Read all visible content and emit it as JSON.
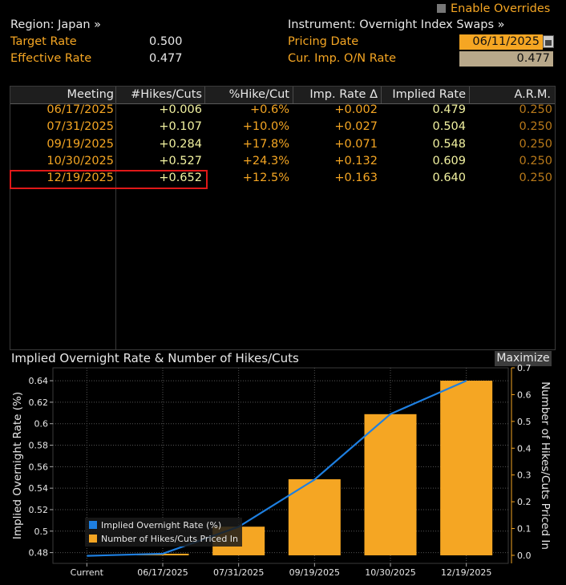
{
  "header": {
    "region": "Region: Japan »",
    "instrument": "Instrument: Overnight Index Swaps »",
    "enable_overrides": "Enable Overrides",
    "target_rate_label": "Target Rate",
    "target_rate_value": "0.500",
    "effective_rate_label": "Effective Rate",
    "effective_rate_value": "0.477",
    "pricing_date_label": "Pricing Date",
    "pricing_date_value": "06/11/2025",
    "cur_imp_label": "Cur. Imp. O/N Rate",
    "cur_imp_value": "0.477"
  },
  "table": {
    "headers": [
      "Meeting",
      "#Hikes/Cuts",
      "%Hike/Cut",
      "Imp. Rate Δ",
      "Implied Rate",
      "A.R.M."
    ],
    "rows": [
      {
        "meeting": "06/17/2025",
        "hikes": "+0.006",
        "pct": "+0.6%",
        "delta": "+0.002",
        "implied": "0.479",
        "arm": "0.250"
      },
      {
        "meeting": "07/31/2025",
        "hikes": "+0.107",
        "pct": "+10.0%",
        "delta": "+0.027",
        "implied": "0.504",
        "arm": "0.250"
      },
      {
        "meeting": "09/19/2025",
        "hikes": "+0.284",
        "pct": "+17.8%",
        "delta": "+0.071",
        "implied": "0.548",
        "arm": "0.250"
      },
      {
        "meeting": "10/30/2025",
        "hikes": "+0.527",
        "pct": "+24.3%",
        "delta": "+0.132",
        "implied": "0.609",
        "arm": "0.250"
      },
      {
        "meeting": "12/19/2025",
        "hikes": "+0.652",
        "pct": "+12.5%",
        "delta": "+0.163",
        "implied": "0.640",
        "arm": "0.250"
      }
    ]
  },
  "chart": {
    "title": "Implied Overnight Rate & Number of Hikes/Cuts",
    "maximize_label": "Maximize"
  },
  "chart_data": {
    "type": "bar",
    "title": "Implied Overnight Rate & Number of Hikes/Cuts",
    "categories": [
      "Current",
      "06/17/2025",
      "07/31/2025",
      "09/19/2025",
      "10/30/2025",
      "12/19/2025"
    ],
    "series": [
      {
        "name": "Number of Hikes/Cuts Priced In",
        "type": "bar",
        "axis": "right",
        "color": "#f5a623",
        "values": [
          0.0,
          0.006,
          0.107,
          0.284,
          0.527,
          0.652
        ]
      },
      {
        "name": "Implied Overnight Rate (%)",
        "type": "line",
        "axis": "left",
        "color": "#1e7fe0",
        "values": [
          0.477,
          0.479,
          0.504,
          0.548,
          0.609,
          0.64
        ]
      }
    ],
    "ylabel": "Implied Overnight Rate (%)",
    "y2label": "Number of Hikes/Cuts Priced In",
    "ylim": [
      0.47,
      0.652
    ],
    "y2lim": [
      -0.03,
      0.7
    ],
    "yticks": [
      "0.48",
      "0.5",
      "0.52",
      "0.54",
      "0.56",
      "0.58",
      "0.6",
      "0.62",
      "0.64"
    ],
    "y2ticks": [
      "0.0",
      "0.1",
      "0.2",
      "0.3",
      "0.4",
      "0.5",
      "0.6",
      "0.7"
    ],
    "legend": "bottom-left",
    "grid": true
  }
}
